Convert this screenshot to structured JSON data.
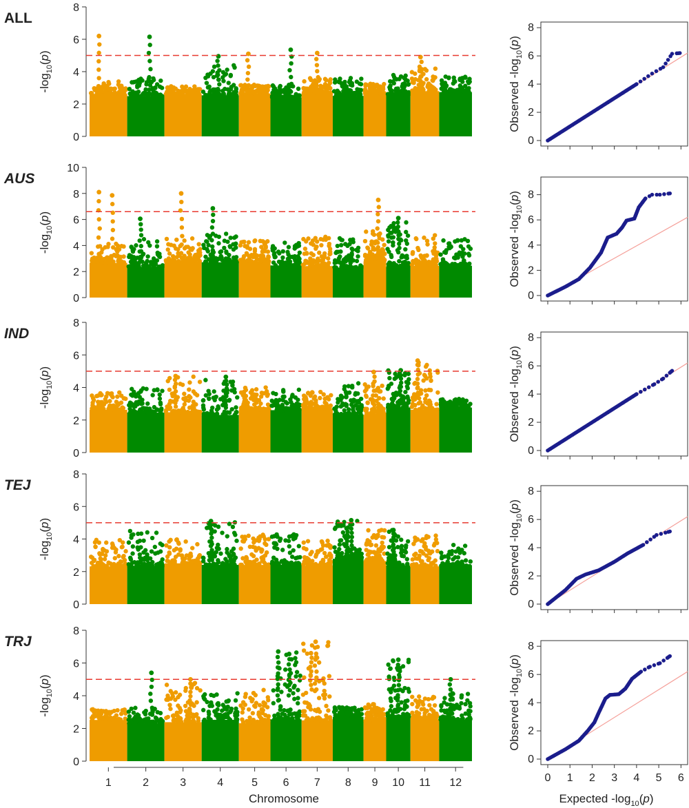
{
  "colors": {
    "odd": "#ef9c00",
    "even": "#008a00",
    "threshold": "#e8392f",
    "qq": "#1b1d8c",
    "qq_line": "#f5a09a"
  },
  "manhattan_xlabel": "Chromosome",
  "manhattan_ylabel": "-log10(p)",
  "qq_xlabel": "Expected -log10(p)",
  "qq_ylabel": "Observed -log10(p)",
  "chromosomes": [
    "1",
    "2",
    "3",
    "4",
    "5",
    "6",
    "7",
    "8",
    "9",
    "10",
    "11",
    "12"
  ],
  "chart_data": [
    {
      "type": "scatter",
      "title": "ALL",
      "title_italic": false,
      "ylim": [
        0,
        8
      ],
      "yticks": [
        "0",
        "2",
        "4",
        "6",
        "8"
      ],
      "threshold": 5.0,
      "chrom_base": [
        3.4,
        3.6,
        3.1,
        4.4,
        3.2,
        3.3,
        3.6,
        3.7,
        3.3,
        3.8,
        4.2,
        3.7
      ],
      "highlights": [
        {
          "chr": 1,
          "value": 6.2
        },
        {
          "chr": 2,
          "value": 6.15
        },
        {
          "chr": 4,
          "value": 4.95
        },
        {
          "chr": 5,
          "value": 5.1
        },
        {
          "chr": 6,
          "value": 5.35
        },
        {
          "chr": 7,
          "value": 5.15
        },
        {
          "chr": 11,
          "value": 4.9
        }
      ],
      "qq": {
        "ylim": [
          0,
          8
        ],
        "yticks": [
          "0",
          "2",
          "4",
          "6",
          "8"
        ],
        "curve": [
          [
            0,
            0
          ],
          [
            1,
            1
          ],
          [
            2,
            2
          ],
          [
            3,
            3
          ],
          [
            4,
            4
          ],
          [
            4.7,
            4.75
          ],
          [
            5.2,
            5.2
          ],
          [
            5.6,
            6.15
          ],
          [
            5.95,
            6.2
          ]
        ]
      }
    },
    {
      "type": "scatter",
      "title": "AUS",
      "title_italic": true,
      "ylim": [
        0,
        10
      ],
      "yticks": [
        "0",
        "2",
        "4",
        "6",
        "8",
        "10"
      ],
      "threshold": 6.6,
      "chrom_base": [
        4.2,
        4.5,
        4.6,
        4.9,
        4.4,
        4.3,
        4.7,
        4.6,
        5.2,
        5.8,
        4.8,
        4.5
      ],
      "highlights": [
        {
          "chr": 1,
          "value": 8.1
        },
        {
          "chr": 1,
          "value": 7.85
        },
        {
          "chr": 3,
          "value": 8.0
        },
        {
          "chr": 4,
          "value": 6.85
        },
        {
          "chr": 9,
          "value": 7.5
        },
        {
          "chr": 10,
          "value": 6.1
        },
        {
          "chr": 2,
          "value": 6.05
        }
      ],
      "qq": {
        "ylim": [
          0,
          9
        ],
        "yticks": [
          "0",
          "2",
          "4",
          "6",
          "8"
        ],
        "curve": [
          [
            0,
            0
          ],
          [
            0.8,
            0.7
          ],
          [
            1.4,
            1.3
          ],
          [
            1.9,
            2.2
          ],
          [
            2.4,
            3.4
          ],
          [
            2.7,
            4.6
          ],
          [
            3.1,
            4.9
          ],
          [
            3.35,
            5.4
          ],
          [
            3.55,
            5.95
          ],
          [
            3.9,
            6.1
          ],
          [
            4.1,
            7.0
          ],
          [
            4.4,
            7.7
          ],
          [
            4.7,
            8.0
          ],
          [
            5.05,
            8.0
          ],
          [
            5.5,
            8.1
          ]
        ]
      }
    },
    {
      "type": "scatter",
      "title": "IND",
      "title_italic": true,
      "ylim": [
        0,
        8
      ],
      "yticks": [
        "0",
        "2",
        "4",
        "6",
        "8"
      ],
      "threshold": 5.0,
      "chrom_base": [
        3.7,
        4.0,
        4.7,
        4.6,
        4.0,
        3.9,
        3.8,
        4.3,
        4.4,
        5.05,
        5.65,
        3.3
      ],
      "highlights": [
        {
          "chr": 11,
          "value": 5.65
        },
        {
          "chr": 10,
          "value": 5.05
        },
        {
          "chr": 9,
          "value": 4.95
        },
        {
          "chr": 3,
          "value": 4.7
        },
        {
          "chr": 4,
          "value": 4.65
        }
      ],
      "qq": {
        "ylim": [
          0,
          8
        ],
        "yticks": [
          "0",
          "2",
          "4",
          "6",
          "8"
        ],
        "curve": [
          [
            0,
            0
          ],
          [
            1,
            1.0
          ],
          [
            2,
            2.0
          ],
          [
            3,
            3.0
          ],
          [
            4,
            4.0
          ],
          [
            4.8,
            4.7
          ],
          [
            5.2,
            5.1
          ],
          [
            5.6,
            5.65
          ]
        ]
      }
    },
    {
      "type": "scatter",
      "title": "TEJ",
      "title_italic": true,
      "ylim": [
        0,
        8
      ],
      "yticks": [
        "0",
        "2",
        "4",
        "6",
        "8"
      ],
      "threshold": 5.0,
      "chrom_base": [
        4.0,
        4.5,
        4.0,
        5.1,
        4.3,
        4.4,
        4.1,
        5.15,
        4.6,
        4.6,
        4.4,
        3.7
      ],
      "highlights": [
        {
          "chr": 4,
          "value": 5.1
        },
        {
          "chr": 8,
          "value": 5.15
        },
        {
          "chr": 8,
          "value": 4.65
        },
        {
          "chr": 10,
          "value": 4.55
        }
      ],
      "qq": {
        "ylim": [
          0,
          8
        ],
        "yticks": [
          "0",
          "2",
          "4",
          "6",
          "8"
        ],
        "curve": [
          [
            0,
            0
          ],
          [
            0.8,
            1.0
          ],
          [
            1.3,
            1.8
          ],
          [
            1.7,
            2.1
          ],
          [
            2.3,
            2.4
          ],
          [
            3.0,
            3.0
          ],
          [
            3.6,
            3.6
          ],
          [
            4.3,
            4.2
          ],
          [
            4.9,
            4.9
          ],
          [
            5.5,
            5.15
          ]
        ]
      }
    },
    {
      "type": "scatter",
      "title": "TRJ",
      "title_italic": true,
      "ylim": [
        0,
        8
      ],
      "yticks": [
        "0",
        "2",
        "4",
        "6",
        "8"
      ],
      "threshold": 5.0,
      "chrom_base": [
        3.2,
        3.3,
        4.9,
        4.2,
        4.4,
        6.7,
        7.3,
        3.3,
        3.5,
        6.2,
        4.0,
        4.2
      ],
      "highlights": [
        {
          "chr": 6,
          "value": 6.7
        },
        {
          "chr": 6,
          "value": 6.55
        },
        {
          "chr": 7,
          "value": 7.3
        },
        {
          "chr": 7,
          "value": 6.6
        },
        {
          "chr": 2,
          "value": 5.4
        },
        {
          "chr": 10,
          "value": 6.2
        },
        {
          "chr": 12,
          "value": 5.0
        },
        {
          "chr": 3,
          "value": 5.0
        }
      ],
      "qq": {
        "ylim": [
          0,
          8
        ],
        "yticks": [
          "0",
          "2",
          "4",
          "6",
          "8"
        ],
        "curve": [
          [
            0,
            0
          ],
          [
            0.8,
            0.7
          ],
          [
            1.4,
            1.3
          ],
          [
            1.8,
            2.0
          ],
          [
            2.1,
            2.6
          ],
          [
            2.3,
            3.3
          ],
          [
            2.6,
            4.3
          ],
          [
            2.8,
            4.55
          ],
          [
            3.2,
            4.6
          ],
          [
            3.5,
            5.0
          ],
          [
            3.8,
            5.7
          ],
          [
            4.2,
            6.2
          ],
          [
            4.6,
            6.55
          ],
          [
            5.05,
            6.8
          ],
          [
            5.5,
            7.3
          ]
        ]
      }
    }
  ]
}
